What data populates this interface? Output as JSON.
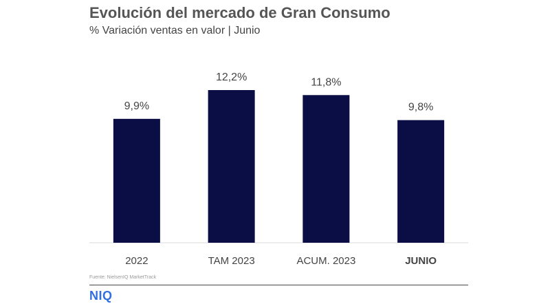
{
  "title": "Evolución del mercado de Gran Consumo",
  "subtitle": "% Variación ventas en valor | Junio",
  "source": "Fuente: NielsenIQ MarketTrack",
  "logo": "NIQ",
  "colors": {
    "bar": "#0b0d45",
    "text": "#444444",
    "baseline": "#d9d9d9",
    "logo": "#2f6fe0"
  },
  "chart_data": {
    "type": "bar",
    "categories": [
      "2022",
      "TAM 2023",
      "ACUM. 2023",
      "JUNIO"
    ],
    "values": [
      9.9,
      12.2,
      11.8,
      9.8
    ],
    "value_labels": [
      "9,9%",
      "12,2%",
      "11,8%",
      "9,8%"
    ],
    "bold_categories": [
      "JUNIO"
    ],
    "title": "Evolución del mercado de Gran Consumo",
    "subtitle": "% Variación ventas en valor | Junio",
    "xlabel": "",
    "ylabel": "",
    "ylim": [
      0,
      12.2
    ],
    "grid": false,
    "legend": "none"
  }
}
